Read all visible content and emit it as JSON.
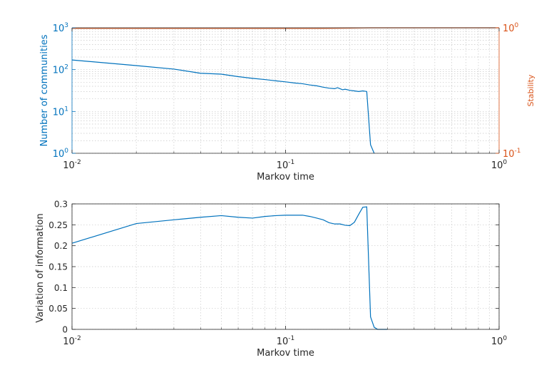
{
  "chart_data": [
    {
      "type": "line",
      "xscale": "log",
      "xlim": [
        0.01,
        1
      ],
      "xlabel": "Markov time",
      "x_ticks": [
        {
          "v": 0.01,
          "base": "10",
          "exp": "-2"
        },
        {
          "v": 0.1,
          "base": "10",
          "exp": "-1"
        },
        {
          "v": 1,
          "base": "10",
          "exp": "0"
        }
      ],
      "grid": true,
      "left_axis": {
        "label": "Number of communities",
        "scale": "log",
        "ylim": [
          1,
          1000
        ],
        "color": "#0072bd",
        "ticks": [
          {
            "v": 1,
            "base": "10",
            "exp": "0"
          },
          {
            "v": 10,
            "base": "10",
            "exp": "1"
          },
          {
            "v": 100,
            "base": "10",
            "exp": "2"
          },
          {
            "v": 1000,
            "base": "10",
            "exp": "3"
          }
        ]
      },
      "right_axis": {
        "label": "Stability",
        "scale": "log",
        "ylim": [
          0.1,
          1
        ],
        "color": "#d95319",
        "ticks": [
          {
            "v": 0.1,
            "base": "10",
            "exp": "-1"
          },
          {
            "v": 1,
            "base": "10",
            "exp": "0"
          }
        ]
      },
      "series": [
        {
          "axis": "left",
          "color": "#0072bd",
          "x": [
            0.01,
            0.02,
            0.03,
            0.04,
            0.05,
            0.06,
            0.07,
            0.08,
            0.09,
            0.1,
            0.11,
            0.12,
            0.13,
            0.14,
            0.15,
            0.16,
            0.17,
            0.175,
            0.18,
            0.185,
            0.19,
            0.2,
            0.21,
            0.22,
            0.23,
            0.24,
            0.25,
            0.26
          ],
          "y": [
            170,
            125,
            103,
            82,
            78,
            68,
            62,
            58,
            54,
            51,
            48,
            46,
            43,
            41,
            38,
            36,
            35,
            37,
            35,
            33,
            34,
            32,
            31,
            30,
            31,
            30,
            1.6,
            1
          ]
        },
        {
          "axis": "right",
          "color": "#d95319",
          "x": [
            0.01,
            0.05,
            0.1,
            0.15,
            0.2,
            0.25,
            0.3,
            0.5,
            1
          ],
          "y": [
            0.99,
            0.99,
            0.99,
            0.99,
            0.995,
            1,
            1,
            1,
            1
          ]
        }
      ]
    },
    {
      "type": "line",
      "xscale": "log",
      "xlim": [
        0.01,
        1
      ],
      "ylim": [
        0,
        0.3
      ],
      "xlabel": "Markov time",
      "ylabel": "Variation of information",
      "grid": true,
      "x_ticks": [
        {
          "v": 0.01,
          "base": "10",
          "exp": "-2"
        },
        {
          "v": 0.1,
          "base": "10",
          "exp": "-1"
        },
        {
          "v": 1,
          "base": "10",
          "exp": "0"
        }
      ],
      "y_ticks": [
        {
          "v": 0,
          "label": "0"
        },
        {
          "v": 0.05,
          "label": "0.05"
        },
        {
          "v": 0.1,
          "label": "0.1"
        },
        {
          "v": 0.15,
          "label": "0.15"
        },
        {
          "v": 0.2,
          "label": "0.2"
        },
        {
          "v": 0.25,
          "label": "0.25"
        },
        {
          "v": 0.3,
          "label": "0.3"
        }
      ],
      "series": [
        {
          "color": "#0072bd",
          "x": [
            0.01,
            0.02,
            0.03,
            0.04,
            0.05,
            0.06,
            0.07,
            0.08,
            0.09,
            0.1,
            0.11,
            0.12,
            0.13,
            0.14,
            0.15,
            0.16,
            0.17,
            0.18,
            0.19,
            0.2,
            0.21,
            0.22,
            0.23,
            0.24,
            0.25,
            0.26,
            0.27,
            0.3
          ],
          "y": [
            0.206,
            0.253,
            0.262,
            0.268,
            0.272,
            0.268,
            0.266,
            0.27,
            0.272,
            0.273,
            0.273,
            0.273,
            0.27,
            0.266,
            0.262,
            0.255,
            0.252,
            0.252,
            0.249,
            0.248,
            0.256,
            0.275,
            0.292,
            0.293,
            0.03,
            0.005,
            0,
            0
          ]
        }
      ]
    }
  ]
}
